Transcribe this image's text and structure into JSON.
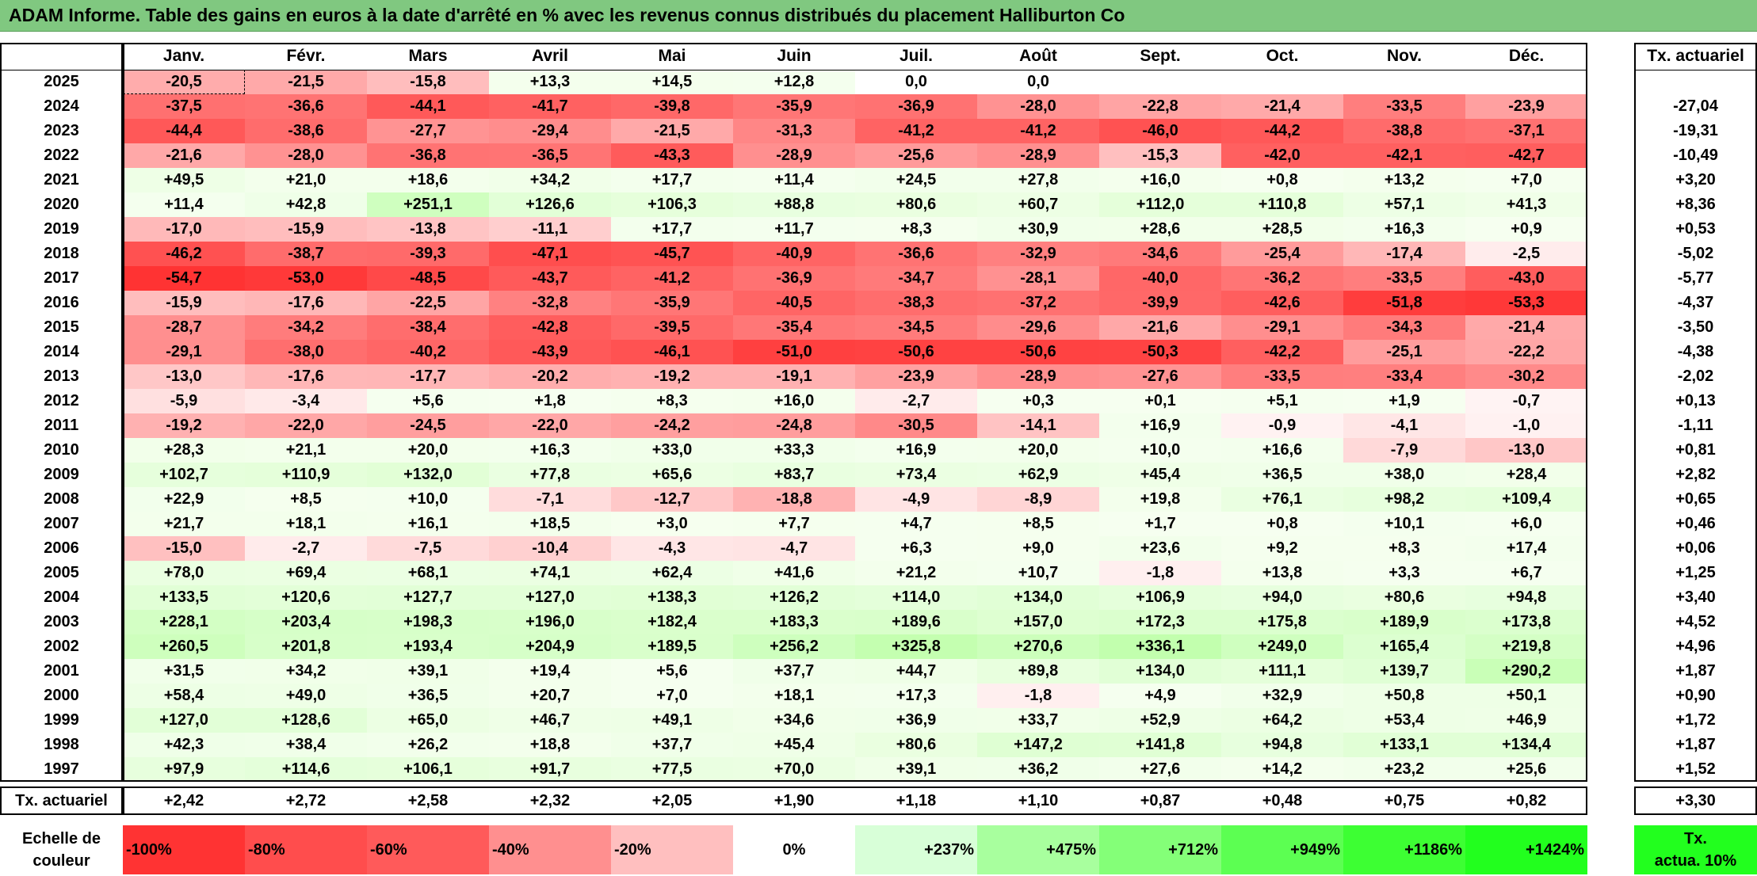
{
  "title": "ADAM Informe. Table des gains en euros à la date d'arrêté en % avec les revenus connus distribués du placement Halliburton Co",
  "months": [
    "Janv.",
    "Févr.",
    "Mars",
    "Avril",
    "Mai",
    "Juin",
    "Juil.",
    "Août",
    "Sept.",
    "Oct.",
    "Nov.",
    "Déc."
  ],
  "annual_header": "Tx. actuariel",
  "rows": [
    {
      "year": "2025",
      "values": [
        "-20,5",
        "-21,5",
        "-15,8",
        "+13,3",
        "+14,5",
        "+12,8",
        "0,0",
        "0,0",
        "",
        "",
        "",
        ""
      ],
      "annual": ""
    },
    {
      "year": "2024",
      "values": [
        "-37,5",
        "-36,6",
        "-44,1",
        "-41,7",
        "-39,8",
        "-35,9",
        "-36,9",
        "-28,0",
        "-22,8",
        "-21,4",
        "-33,5",
        "-23,9"
      ],
      "annual": "-27,04"
    },
    {
      "year": "2023",
      "values": [
        "-44,4",
        "-38,6",
        "-27,7",
        "-29,4",
        "-21,5",
        "-31,3",
        "-41,2",
        "-41,2",
        "-46,0",
        "-44,2",
        "-38,8",
        "-37,1"
      ],
      "annual": "-19,31"
    },
    {
      "year": "2022",
      "values": [
        "-21,6",
        "-28,0",
        "-36,8",
        "-36,5",
        "-43,3",
        "-28,9",
        "-25,6",
        "-28,9",
        "-15,3",
        "-42,0",
        "-42,1",
        "-42,7"
      ],
      "annual": "-10,49"
    },
    {
      "year": "2021",
      "values": [
        "+49,5",
        "+21,0",
        "+18,6",
        "+34,2",
        "+17,7",
        "+11,4",
        "+24,5",
        "+27,8",
        "+16,0",
        "+0,8",
        "+13,2",
        "+7,0"
      ],
      "annual": "+3,20"
    },
    {
      "year": "2020",
      "values": [
        "+11,4",
        "+42,8",
        "+251,1",
        "+126,6",
        "+106,3",
        "+88,8",
        "+80,6",
        "+60,7",
        "+112,0",
        "+110,8",
        "+57,1",
        "+41,3"
      ],
      "annual": "+8,36"
    },
    {
      "year": "2019",
      "values": [
        "-17,0",
        "-15,9",
        "-13,8",
        "-11,1",
        "+17,7",
        "+11,7",
        "+8,3",
        "+30,9",
        "+28,6",
        "+28,5",
        "+16,3",
        "+0,9"
      ],
      "annual": "+0,53"
    },
    {
      "year": "2018",
      "values": [
        "-46,2",
        "-38,7",
        "-39,3",
        "-47,1",
        "-45,7",
        "-40,9",
        "-36,6",
        "-32,9",
        "-34,6",
        "-25,4",
        "-17,4",
        "-2,5"
      ],
      "annual": "-5,02"
    },
    {
      "year": "2017",
      "values": [
        "-54,7",
        "-53,0",
        "-48,5",
        "-43,7",
        "-41,2",
        "-36,9",
        "-34,7",
        "-28,1",
        "-40,0",
        "-36,2",
        "-33,5",
        "-43,0"
      ],
      "annual": "-5,77"
    },
    {
      "year": "2016",
      "values": [
        "-15,9",
        "-17,6",
        "-22,5",
        "-32,8",
        "-35,9",
        "-40,5",
        "-38,3",
        "-37,2",
        "-39,9",
        "-42,6",
        "-51,8",
        "-53,3"
      ],
      "annual": "-4,37"
    },
    {
      "year": "2015",
      "values": [
        "-28,7",
        "-34,2",
        "-38,4",
        "-42,8",
        "-39,5",
        "-35,4",
        "-34,5",
        "-29,6",
        "-21,6",
        "-29,1",
        "-34,3",
        "-21,4"
      ],
      "annual": "-3,50"
    },
    {
      "year": "2014",
      "values": [
        "-29,1",
        "-38,0",
        "-40,2",
        "-43,9",
        "-46,1",
        "-51,0",
        "-50,6",
        "-50,6",
        "-50,3",
        "-42,2",
        "-25,1",
        "-22,2"
      ],
      "annual": "-4,38"
    },
    {
      "year": "2013",
      "values": [
        "-13,0",
        "-17,6",
        "-17,7",
        "-20,2",
        "-19,2",
        "-19,1",
        "-23,9",
        "-28,9",
        "-27,6",
        "-33,5",
        "-33,4",
        "-30,2"
      ],
      "annual": "-2,02"
    },
    {
      "year": "2012",
      "values": [
        "-5,9",
        "-3,4",
        "+5,6",
        "+1,8",
        "+8,3",
        "+16,0",
        "-2,7",
        "+0,3",
        "+0,1",
        "+5,1",
        "+1,9",
        "-0,7"
      ],
      "annual": "+0,13"
    },
    {
      "year": "2011",
      "values": [
        "-19,2",
        "-22,0",
        "-24,5",
        "-22,0",
        "-24,2",
        "-24,8",
        "-30,5",
        "-14,1",
        "+16,9",
        "-0,9",
        "-4,1",
        "-1,0"
      ],
      "annual": "-1,11"
    },
    {
      "year": "2010",
      "values": [
        "+28,3",
        "+21,1",
        "+20,0",
        "+16,3",
        "+33,0",
        "+33,3",
        "+16,9",
        "+20,0",
        "+10,0",
        "+16,6",
        "-7,9",
        "-13,0"
      ],
      "annual": "+0,81"
    },
    {
      "year": "2009",
      "values": [
        "+102,7",
        "+110,9",
        "+132,0",
        "+77,8",
        "+65,6",
        "+83,7",
        "+73,4",
        "+62,9",
        "+45,4",
        "+36,5",
        "+38,0",
        "+28,4"
      ],
      "annual": "+2,82"
    },
    {
      "year": "2008",
      "values": [
        "+22,9",
        "+8,5",
        "+10,0",
        "-7,1",
        "-12,7",
        "-18,8",
        "-4,9",
        "-8,9",
        "+19,8",
        "+76,1",
        "+98,2",
        "+109,4"
      ],
      "annual": "+0,65"
    },
    {
      "year": "2007",
      "values": [
        "+21,7",
        "+18,1",
        "+16,1",
        "+18,5",
        "+3,0",
        "+7,7",
        "+4,7",
        "+8,5",
        "+1,7",
        "+0,8",
        "+10,1",
        "+6,0"
      ],
      "annual": "+0,46"
    },
    {
      "year": "2006",
      "values": [
        "-15,0",
        "-2,7",
        "-7,5",
        "-10,4",
        "-4,3",
        "-4,7",
        "+6,3",
        "+9,0",
        "+23,6",
        "+9,2",
        "+8,3",
        "+17,4"
      ],
      "annual": "+0,06"
    },
    {
      "year": "2005",
      "values": [
        "+78,0",
        "+69,4",
        "+68,1",
        "+74,1",
        "+62,4",
        "+41,6",
        "+21,2",
        "+10,7",
        "-1,8",
        "+13,8",
        "+3,3",
        "+6,7"
      ],
      "annual": "+1,25"
    },
    {
      "year": "2004",
      "values": [
        "+133,5",
        "+120,6",
        "+127,7",
        "+127,0",
        "+138,3",
        "+126,2",
        "+114,0",
        "+134,0",
        "+106,9",
        "+94,0",
        "+80,6",
        "+94,8"
      ],
      "annual": "+3,40"
    },
    {
      "year": "2003",
      "values": [
        "+228,1",
        "+203,4",
        "+198,3",
        "+196,0",
        "+182,4",
        "+183,3",
        "+189,6",
        "+157,0",
        "+172,3",
        "+175,8",
        "+189,9",
        "+173,8"
      ],
      "annual": "+4,52"
    },
    {
      "year": "2002",
      "values": [
        "+260,5",
        "+201,8",
        "+193,4",
        "+204,9",
        "+189,5",
        "+256,2",
        "+325,8",
        "+270,6",
        "+336,1",
        "+249,0",
        "+165,4",
        "+219,8"
      ],
      "annual": "+4,96"
    },
    {
      "year": "2001",
      "values": [
        "+31,5",
        "+34,2",
        "+39,1",
        "+19,4",
        "+5,6",
        "+37,7",
        "+44,7",
        "+89,8",
        "+134,0",
        "+111,1",
        "+139,7",
        "+290,2"
      ],
      "annual": "+1,87"
    },
    {
      "year": "2000",
      "values": [
        "+58,4",
        "+49,0",
        "+36,5",
        "+20,7",
        "+7,0",
        "+18,1",
        "+17,3",
        "-1,8",
        "+4,9",
        "+32,9",
        "+50,8",
        "+50,1"
      ],
      "annual": "+0,90"
    },
    {
      "year": "1999",
      "values": [
        "+127,0",
        "+128,6",
        "+65,0",
        "+46,7",
        "+49,1",
        "+34,6",
        "+36,9",
        "+33,7",
        "+52,9",
        "+64,2",
        "+53,4",
        "+46,9"
      ],
      "annual": "+1,72"
    },
    {
      "year": "1998",
      "values": [
        "+42,3",
        "+38,4",
        "+26,2",
        "+18,8",
        "+37,7",
        "+45,4",
        "+80,6",
        "+147,2",
        "+141,8",
        "+94,8",
        "+133,1",
        "+134,4"
      ],
      "annual": "+1,87"
    },
    {
      "year": "1997",
      "values": [
        "+97,9",
        "+114,6",
        "+106,1",
        "+91,7",
        "+77,5",
        "+70,0",
        "+39,1",
        "+36,2",
        "+27,6",
        "+14,2",
        "+23,2",
        "+25,6"
      ],
      "annual": "+1,52"
    }
  ],
  "summary_row": {
    "label": "Tx. actuariel",
    "values": [
      "+2,42",
      "+2,72",
      "+2,58",
      "+2,32",
      "+2,05",
      "+1,90",
      "+1,18",
      "+1,10",
      "+0,87",
      "+0,48",
      "+0,75",
      "+0,82"
    ],
    "annual": "+3,30"
  },
  "color_scale": {
    "label_line1": "Echelle de",
    "label_line2": "couleur",
    "steps": [
      {
        "label": "-100%",
        "color": "#ff3333",
        "align": "left"
      },
      {
        "label": "-80%",
        "color": "#ff4d4d",
        "align": "left"
      },
      {
        "label": "-60%",
        "color": "#ff5a5a",
        "align": "left"
      },
      {
        "label": "-40%",
        "color": "#ff8f8f",
        "align": "left"
      },
      {
        "label": "-20%",
        "color": "#ffbfbf",
        "align": "left"
      },
      {
        "label": "0%",
        "color": "#ffffff",
        "align": "center"
      },
      {
        "label": "+237%",
        "color": "#d8ffd8",
        "align": "right"
      },
      {
        "label": "+475%",
        "color": "#a8ff9e",
        "align": "right"
      },
      {
        "label": "+712%",
        "color": "#84ff78",
        "align": "right"
      },
      {
        "label": "+949%",
        "color": "#5cff52",
        "align": "right"
      },
      {
        "label": "+1186%",
        "color": "#3dff33",
        "align": "right"
      },
      {
        "label": "+1424%",
        "color": "#22ff1e",
        "align": "right"
      }
    ],
    "target_line1": "Tx.",
    "target_line2": "actua. 10%",
    "target_color": "#22ff1e"
  }
}
